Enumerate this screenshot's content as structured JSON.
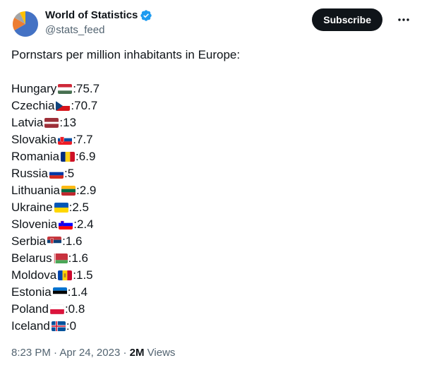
{
  "account": {
    "display_name": "World of Statistics",
    "handle": "@stats_feed",
    "verified": true
  },
  "actions": {
    "subscribe_label": "Subscribe"
  },
  "tweet": {
    "intro": "Pornstars per million inhabitants in Europe:",
    "items": [
      {
        "country": "Hungary",
        "value": "75.7",
        "flag": "hungary-flag"
      },
      {
        "country": "Czechia",
        "value": "70.7",
        "flag": "czechia-flag"
      },
      {
        "country": "Latvia",
        "value": "13",
        "flag": "latvia-flag"
      },
      {
        "country": "Slovakia",
        "value": "7.7",
        "flag": "slovakia-flag"
      },
      {
        "country": "Romania",
        "value": "6.9",
        "flag": "romania-flag"
      },
      {
        "country": "Russia",
        "value": "5",
        "flag": "russia-flag"
      },
      {
        "country": "Lithuania",
        "value": "2.9",
        "flag": "lithuania-flag"
      },
      {
        "country": "Ukraine",
        "value": "2.5",
        "flag": "ukraine-flag"
      },
      {
        "country": "Slovenia",
        "value": "2.4",
        "flag": "slovenia-flag"
      },
      {
        "country": "Serbia",
        "value": "1.6",
        "flag": "serbia-flag"
      },
      {
        "country": "Belarus",
        "value": "1.6",
        "flag": "belarus-flag"
      },
      {
        "country": "Moldova",
        "value": "1.5",
        "flag": "moldova-flag"
      },
      {
        "country": "Estonia",
        "value": "1.4",
        "flag": "estonia-flag"
      },
      {
        "country": "Poland",
        "value": "0.8",
        "flag": "poland-flag"
      },
      {
        "country": "Iceland",
        "value": "0",
        "flag": "iceland-flag"
      }
    ]
  },
  "meta": {
    "time": "8:23 PM",
    "date": "Apr 24, 2023",
    "views_count": "2M",
    "views_label": "Views"
  },
  "icons": {
    "avatar": "pie-chart-avatar",
    "verified": "verified-badge-icon",
    "more": "more-options-icon"
  },
  "colors": {
    "text": "#0f1419",
    "secondary": "#536471",
    "verified": "#1d9bf0",
    "button_bg": "#0f1419"
  }
}
